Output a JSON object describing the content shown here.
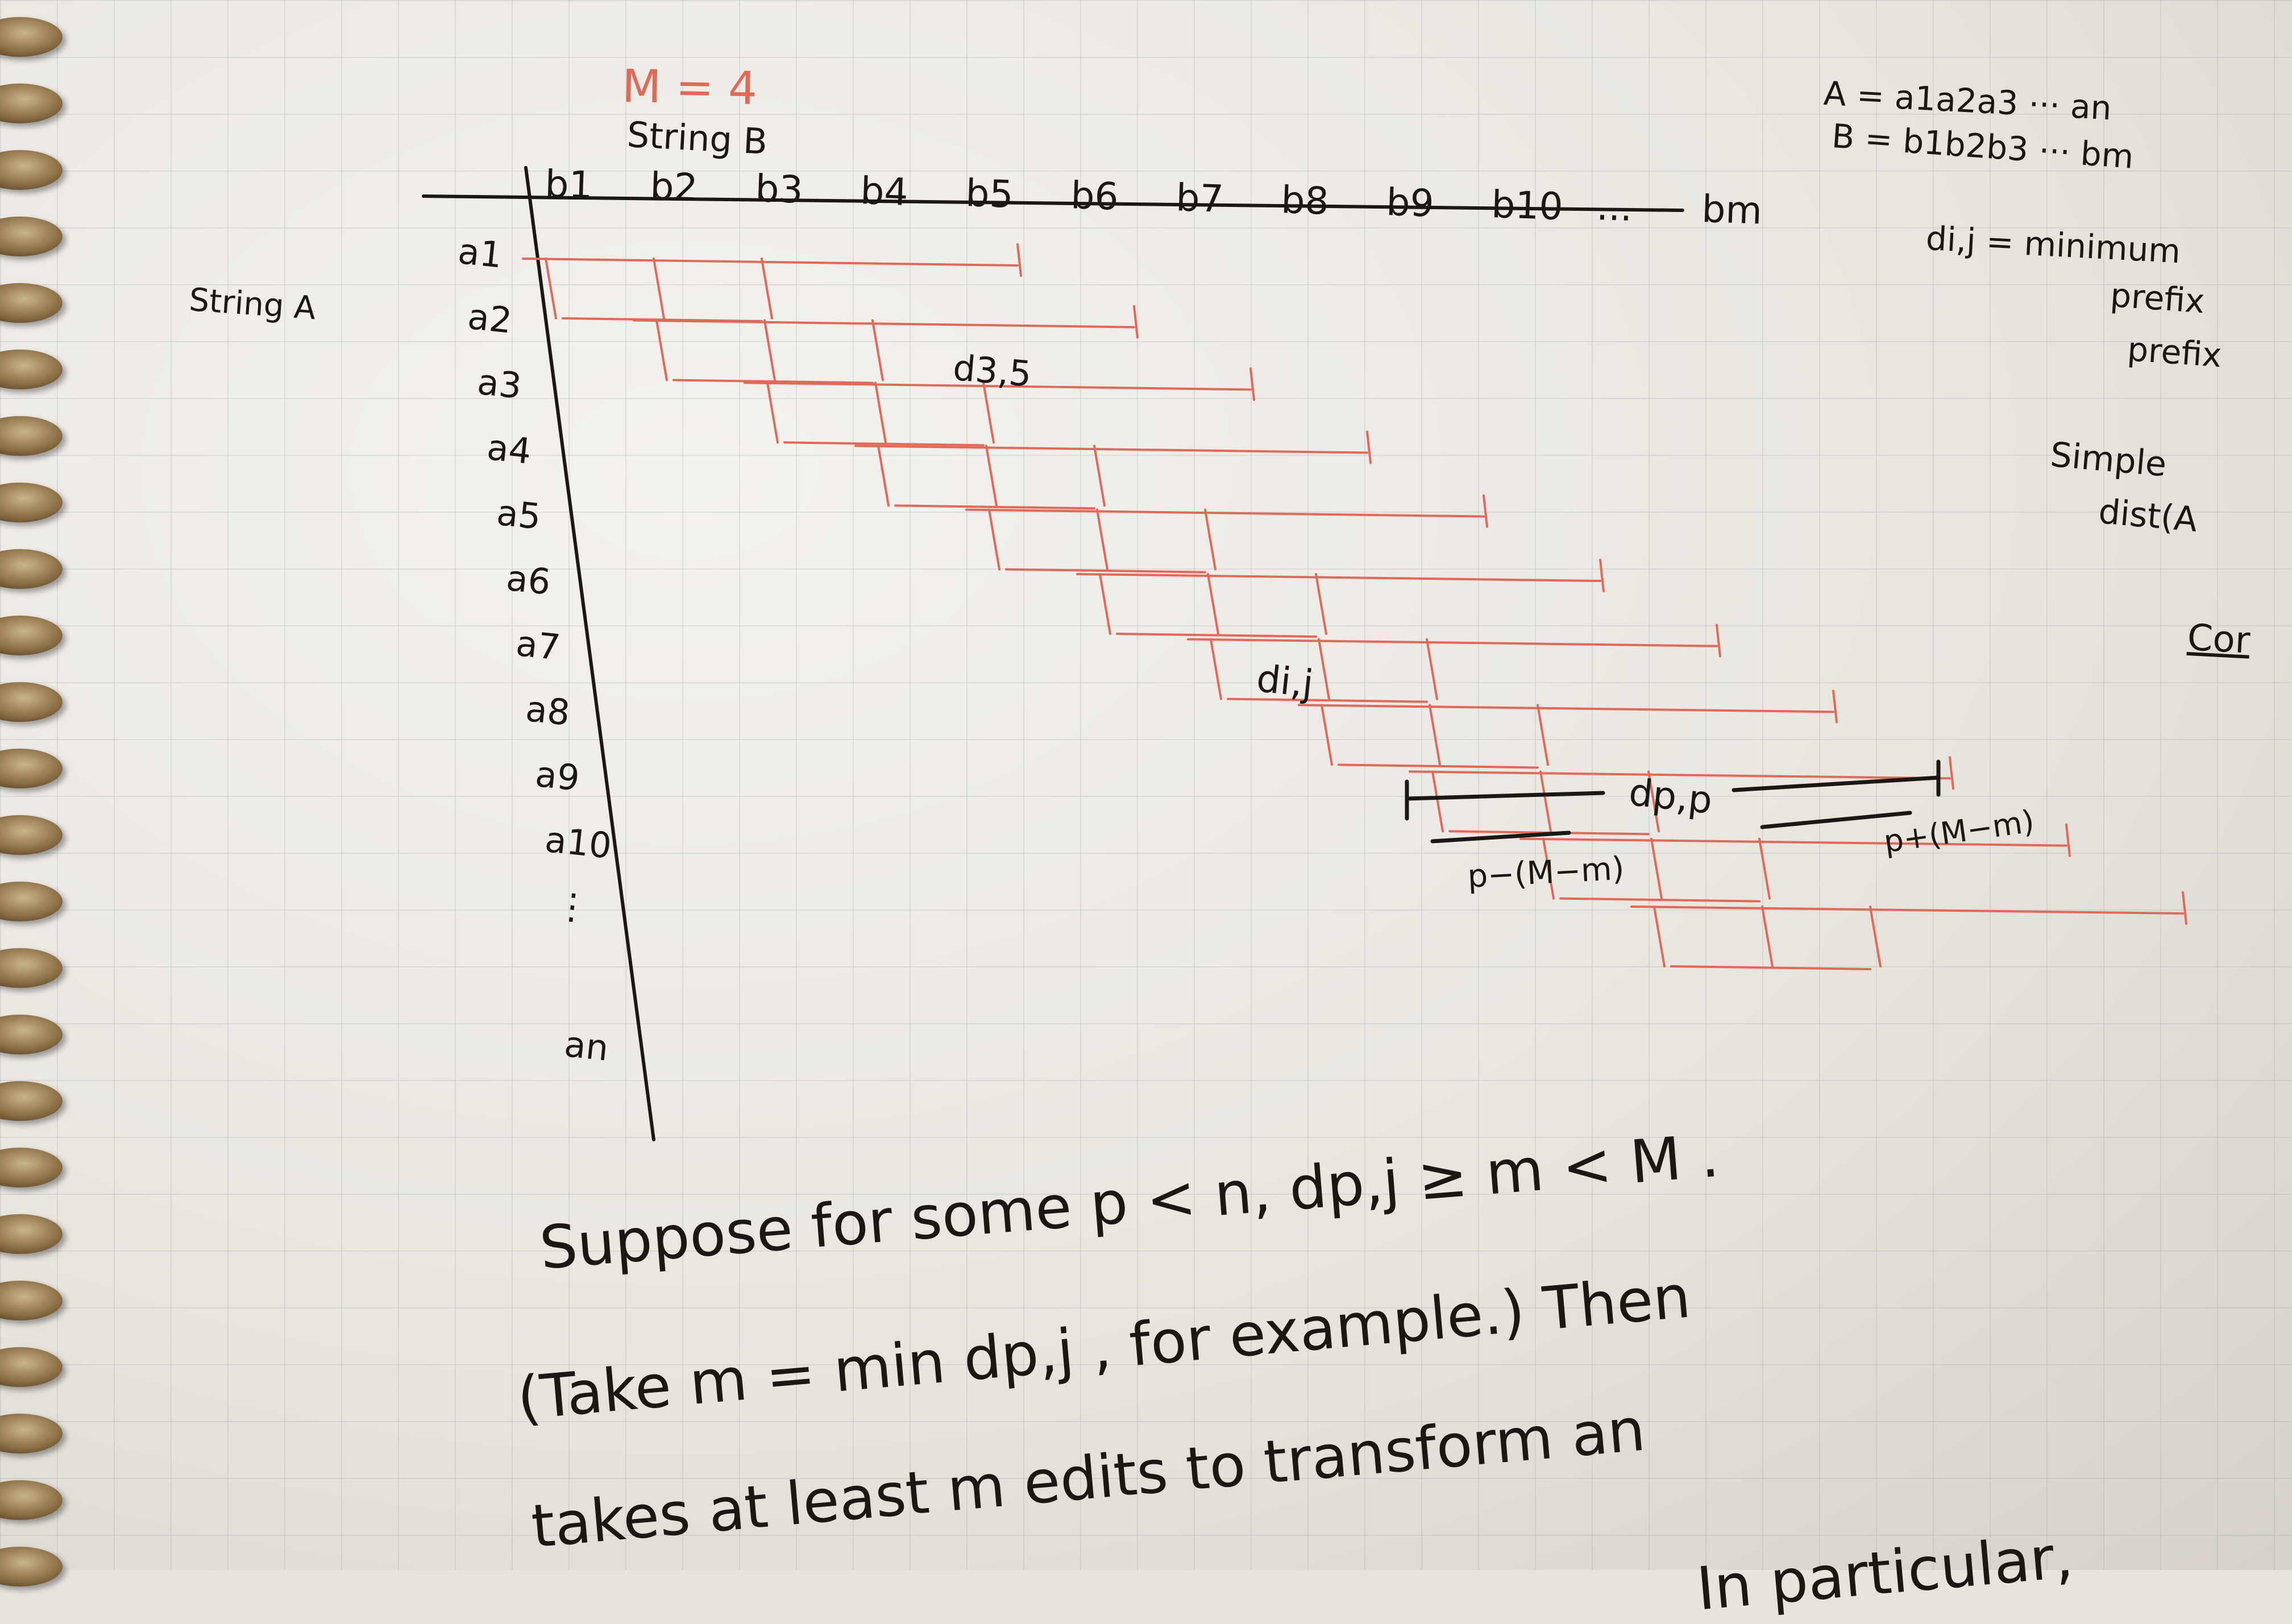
{
  "header": {
    "M_label": "M = 4",
    "string_b_label": "String B",
    "string_a_label": "String A",
    "b_columns": [
      "b1",
      "b2",
      "b3",
      "b4",
      "b5",
      "b6",
      "b7",
      "b8",
      "b9",
      "b10",
      "...",
      "bm"
    ],
    "a_rows": [
      "a1",
      "a2",
      "a3",
      "a4",
      "a5",
      "a6",
      "a7",
      "a8",
      "a9",
      "a10",
      "⋮",
      "an"
    ]
  },
  "cell_labels": {
    "d35": "d3,5",
    "dij": "di,j",
    "dpp": "dp,p",
    "left_brace": "p−(M−m)",
    "right_brace": "p+(M−m)"
  },
  "right_margin": {
    "A_def": "A = a1a2a3 ··· an",
    "B_def": "B = b1b2b3 ··· bm",
    "dij_def": "di,j = minimum",
    "prefix1": "prefix",
    "prefix2": "prefix",
    "simple": "Simple",
    "dist": "dist(A",
    "cor": "Cor"
  },
  "bottom_text": {
    "line1": "Suppose for some p < n,  dp,j ≥ m < M .",
    "line2": "(Take m = min dp,j , for example.) Then",
    "line3": "takes at least m edits to transform an",
    "line4": "In particular,"
  },
  "colors": {
    "ink": "#1b1712",
    "red_ink": "#e06a5a",
    "paper": "#efece7"
  }
}
